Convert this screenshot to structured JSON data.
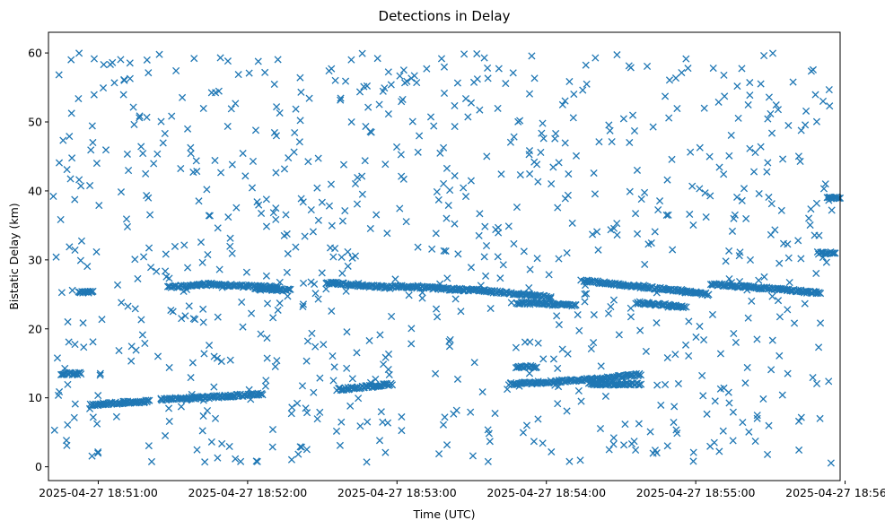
{
  "chart_data": {
    "type": "scatter",
    "title": "Detections in Delay",
    "xlabel": "Time (UTC)",
    "ylabel": "Bistatic Delay (km)",
    "marker": "x",
    "color": "#1f77b4",
    "x_unit": "seconds since 2025-04-27 18:50:00",
    "xlim": [
      40.0,
      358.0
    ],
    "ylim": [
      -2.0,
      63.0
    ],
    "x_ticks": [
      {
        "value": 60,
        "label": "2025-04-27 18:51:00"
      },
      {
        "value": 120,
        "label": "2025-04-27 18:52:00"
      },
      {
        "value": 180,
        "label": "2025-04-27 18:53:00"
      },
      {
        "value": 240,
        "label": "2025-04-27 18:54:00"
      },
      {
        "value": 300,
        "label": "2025-04-27 18:55:00"
      },
      {
        "value": 360,
        "label": "2025-04-27 18:56:00"
      }
    ],
    "y_ticks": [
      {
        "value": 0,
        "label": "0"
      },
      {
        "value": 10,
        "label": "10"
      },
      {
        "value": 20,
        "label": "20"
      },
      {
        "value": 30,
        "label": "30"
      },
      {
        "value": 40,
        "label": "40"
      },
      {
        "value": 50,
        "label": "50"
      },
      {
        "value": 60,
        "label": "60"
      }
    ],
    "clutter": {
      "x_range": [
        41.5,
        355.0
      ],
      "y_range": [
        0.5,
        60.0
      ],
      "count": 850,
      "note": "uniformly scattered noise detections"
    },
    "tracks": [
      {
        "name": "track-a",
        "x": [
          45.0,
          50.0,
          53.0
        ],
        "y": [
          13.5,
          13.5,
          13.5
        ]
      },
      {
        "name": "track-b",
        "x": [
          52.0,
          55.0,
          58.0
        ],
        "y": [
          25.3,
          25.3,
          25.3
        ]
      },
      {
        "name": "track-c",
        "x": [
          57.0,
          70.0,
          80.0
        ],
        "y": [
          9.0,
          9.3,
          9.5
        ]
      },
      {
        "name": "track-d",
        "x": [
          85.0,
          100.0,
          115.0,
          126.0
        ],
        "y": [
          9.8,
          10.0,
          10.3,
          10.6
        ]
      },
      {
        "name": "track-e",
        "x": [
          88.0,
          105.0,
          118.0,
          132.0
        ],
        "y": [
          26.0,
          26.5,
          26.2,
          26.0
        ]
      },
      {
        "name": "track-f",
        "x": [
          123.0,
          130.0,
          137.0
        ],
        "y": [
          25.8,
          25.7,
          25.6
        ]
      },
      {
        "name": "track-g",
        "x": [
          152.0,
          165.0,
          178.0
        ],
        "y": [
          26.7,
          26.3,
          26.0
        ]
      },
      {
        "name": "track-h",
        "x": [
          156.0,
          168.0,
          178.0
        ],
        "y": [
          11.2,
          11.6,
          12.0
        ]
      },
      {
        "name": "track-i",
        "x": [
          178.0,
          195.0,
          215.0,
          232.0,
          242.0
        ],
        "y": [
          26.2,
          25.9,
          25.5,
          25.0,
          24.5
        ]
      },
      {
        "name": "track-j",
        "x": [
          228.0,
          240.0,
          252.0
        ],
        "y": [
          23.8,
          23.6,
          23.4
        ]
      },
      {
        "name": "track-k",
        "x": [
          228.0,
          236.0
        ],
        "y": [
          14.5,
          14.5
        ]
      },
      {
        "name": "track-l",
        "x": [
          225.0,
          245.0,
          265.0,
          278.0
        ],
        "y": [
          12.0,
          12.4,
          12.9,
          13.4
        ]
      },
      {
        "name": "track-m",
        "x": [
          257.0,
          268.0,
          278.0
        ],
        "y": [
          12.0,
          12.0,
          12.0
        ]
      },
      {
        "name": "track-n",
        "x": [
          255.0,
          275.0,
          295.0,
          305.0
        ],
        "y": [
          27.0,
          26.2,
          25.5,
          25.0
        ]
      },
      {
        "name": "track-o",
        "x": [
          276.0,
          287.0,
          296.0
        ],
        "y": [
          23.8,
          23.5,
          23.2
        ]
      },
      {
        "name": "track-p",
        "x": [
          306.0,
          320.0,
          335.0,
          350.0
        ],
        "y": [
          26.5,
          26.1,
          25.7,
          25.2
        ]
      },
      {
        "name": "track-q",
        "x": [
          349.0,
          356.0
        ],
        "y": [
          31.0,
          31.0
        ]
      },
      {
        "name": "track-r",
        "x": [
          353.0,
          358.0
        ],
        "y": [
          39.0,
          39.0
        ]
      }
    ]
  }
}
